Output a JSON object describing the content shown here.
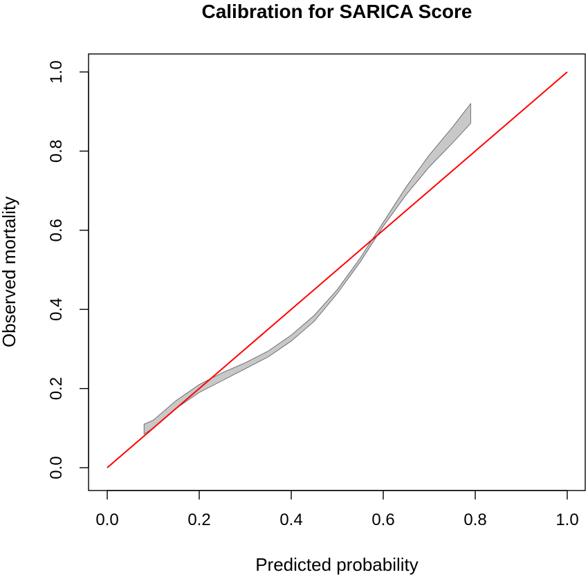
{
  "chart_data": {
    "type": "line",
    "title": "Calibration for SARICA Score",
    "xlabel": "Predicted probability",
    "ylabel": "Observed mortality",
    "xlim": [
      0.0,
      1.0
    ],
    "ylim": [
      0.0,
      1.0
    ],
    "xticks": [
      "0.0",
      "0.2",
      "0.4",
      "0.6",
      "0.8",
      "1.0"
    ],
    "yticks": [
      "0.0",
      "0.2",
      "0.4",
      "0.6",
      "0.8",
      "1.0"
    ],
    "grid": false,
    "legend": "none",
    "colors": {
      "band_fill": "#c8c8c8",
      "band_edge": "#555555",
      "reference_line": "#ff0000"
    },
    "series": [
      {
        "kind": "band",
        "x": [
          0.08,
          0.1,
          0.15,
          0.2,
          0.25,
          0.3,
          0.35,
          0.4,
          0.45,
          0.5,
          0.55,
          0.6,
          0.65,
          0.7,
          0.75,
          0.79
        ],
        "lower": [
          0.085,
          0.1,
          0.15,
          0.19,
          0.22,
          0.25,
          0.28,
          0.32,
          0.37,
          0.44,
          0.52,
          0.61,
          0.69,
          0.76,
          0.82,
          0.87
        ],
        "upper": [
          0.11,
          0.12,
          0.17,
          0.21,
          0.24,
          0.265,
          0.295,
          0.335,
          0.385,
          0.45,
          0.53,
          0.62,
          0.71,
          0.79,
          0.86,
          0.92
        ]
      },
      {
        "kind": "reference",
        "x": [
          0.0,
          1.0
        ],
        "y": [
          0.0,
          1.0
        ]
      }
    ]
  }
}
